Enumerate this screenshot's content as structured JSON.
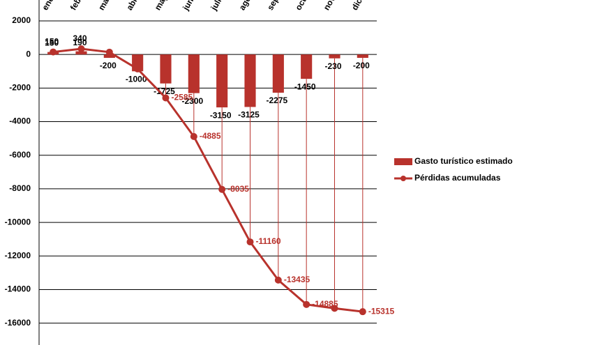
{
  "chart_data": {
    "type": "bar-line",
    "categories": [
      "enero",
      "febrero",
      "marzo",
      "abril",
      "mayo",
      "junio",
      "julio",
      "agosto",
      "septiembre",
      "octubre",
      "noviembre",
      "diciembre"
    ],
    "series": [
      {
        "name": "Gasto turístico estimado",
        "type": "bar",
        "color": "#b8322c",
        "values": [
          150,
          190,
          -200,
          -1000,
          -1725,
          -2300,
          -3150,
          -3125,
          -2275,
          -1450,
          -230,
          -200
        ]
      },
      {
        "name": "Pérdidas acumuladas",
        "type": "line",
        "color": "#b8322c",
        "values": [
          150,
          340,
          140,
          -860,
          -2585,
          -4885,
          -8035,
          -11160,
          -13435,
          -14885,
          -15115,
          -15315
        ],
        "value_labels": [
          "150",
          "340",
          null,
          null,
          "-2585",
          "-4885",
          "-8035",
          "-11160",
          "-13435",
          "-14885",
          null,
          "-15315"
        ]
      }
    ],
    "ylim": [
      -17300,
      2000
    ],
    "yticks": [
      2000,
      0,
      -2000,
      -4000,
      -6000,
      -8000,
      -10000,
      -12000,
      -14000,
      -16000
    ],
    "grid": true,
    "legend": "right"
  }
}
